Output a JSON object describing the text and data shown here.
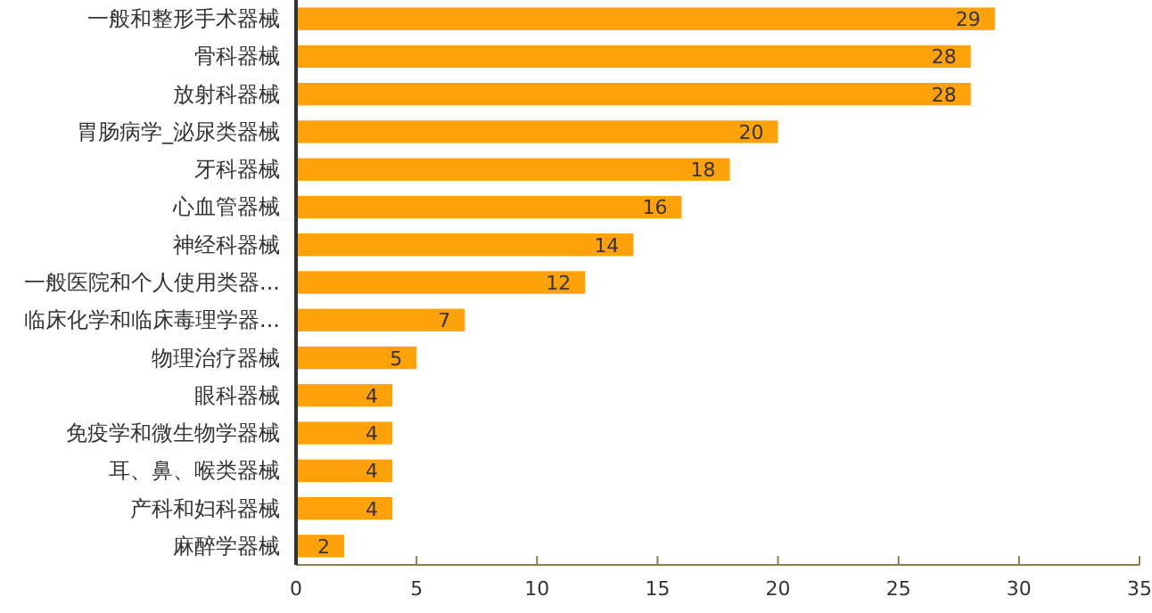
{
  "chart_data": {
    "type": "bar",
    "orientation": "horizontal",
    "categories": [
      "一般和整形手术器械",
      "骨科器械",
      "放射科器械",
      "胃肠病学_泌尿类器械",
      "牙科器械",
      "心血管器械",
      "神经科器械",
      "一般医院和个人使用类器...",
      "临床化学和临床毒理学器...",
      "物理治疗器械",
      "眼科器械",
      "免疫学和微生物学器械",
      "耳、鼻、喉类器械",
      "产科和妇科器械",
      "麻醉学器械"
    ],
    "values": [
      29,
      28,
      28,
      20,
      18,
      16,
      14,
      12,
      7,
      5,
      4,
      4,
      4,
      4,
      2
    ],
    "color": "#ffa20a",
    "xlim": [
      0,
      35
    ],
    "xticks": [
      0,
      5,
      10,
      15,
      20,
      25,
      30,
      35
    ],
    "data_labels": true,
    "grid": false
  }
}
